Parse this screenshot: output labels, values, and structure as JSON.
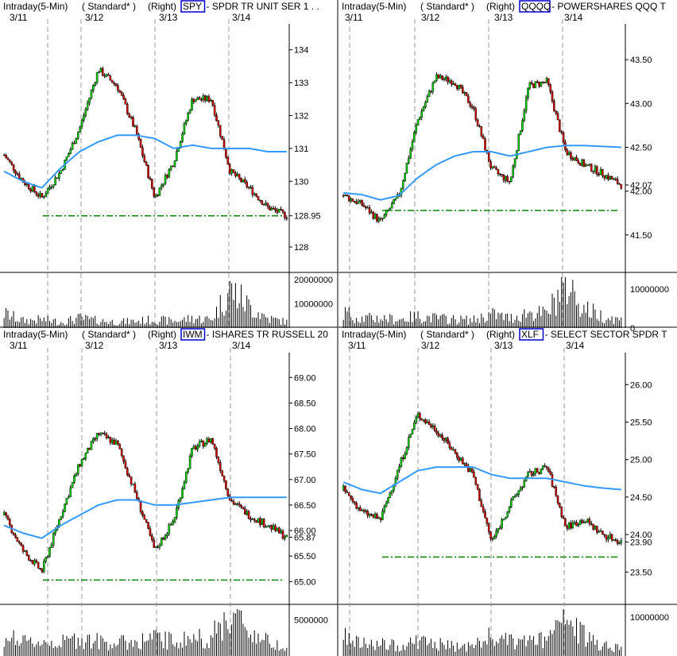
{
  "colors": {
    "up": "#00cc00",
    "down": "#cc0000",
    "ma": "#3399ff",
    "support": "#008800",
    "volume": "#000000",
    "grid": "#999999",
    "symbol_box": "#0000cc",
    "divider": "#000000"
  },
  "panels": [
    {
      "header": {
        "interval": "Intraday(5-Min)",
        "scale": "( Standard* )",
        "axis": "(Right)",
        "symbol": "SPY",
        "description": "- SPDR TR UNIT SER 1 . ."
      },
      "dates": [
        "3/11",
        "3/12",
        "3/13",
        "3/14"
      ],
      "price_axis": {
        "ticks": [
          "134",
          "133",
          "132",
          "131",
          "130",
          "128.95",
          "128"
        ],
        "tick_values": [
          134,
          133,
          132,
          131,
          130,
          128.95,
          128
        ],
        "range": [
          127.3,
          134.5
        ]
      },
      "volume_axis": {
        "ticks": [
          "20000000",
          "10000000"
        ],
        "tick_values": [
          20000000,
          10000000
        ],
        "max": 21000000
      },
      "support_level": 128.95
    },
    {
      "header": {
        "interval": "Intraday(5-Min)",
        "scale": "( Standard* )",
        "axis": "(Right)",
        "symbol": "QQQQ",
        "description": "- POWERSHARES QQQ T"
      },
      "dates": [
        "3/11",
        "3/12",
        "3/13",
        "3/14"
      ],
      "price_axis": {
        "ticks": [
          "43.50",
          "43.00",
          "42.50",
          "42.07",
          "42.00",
          "41.50"
        ],
        "tick_values": [
          43.5,
          43.0,
          42.5,
          42.07,
          42.0,
          41.5
        ],
        "range": [
          41.1,
          43.8
        ]
      },
      "volume_axis": {
        "ticks": [
          "10000000",
          "0"
        ],
        "tick_values": [
          10000000,
          0
        ],
        "max": 13000000
      },
      "support_level": 41.78
    },
    {
      "header": {
        "interval": "Intraday(5-Min)",
        "scale": "( Standard* )",
        "axis": "(Right)",
        "symbol": "IWM",
        "description": "- ISHARES TR RUSSELL 20"
      },
      "dates": [
        "3/11",
        "3/12",
        "3/13",
        "3/14"
      ],
      "price_axis": {
        "ticks": [
          "69.00",
          "68.50",
          "68.00",
          "67.50",
          "67.00",
          "66.50",
          "66.00",
          "65.87",
          "65.50",
          "65.00"
        ],
        "tick_values": [
          69.0,
          68.5,
          68.0,
          67.5,
          67.0,
          66.5,
          66.0,
          65.87,
          65.5,
          65.0
        ],
        "range": [
          64.6,
          69.3
        ]
      },
      "volume_axis": {
        "ticks": [
          "5000000"
        ],
        "tick_values": [
          5000000
        ],
        "max": 6500000
      },
      "support_level": 65.03
    },
    {
      "header": {
        "interval": "Intraday(5-Min)",
        "scale": "( Standard* )",
        "axis": "(Right)",
        "symbol": "XLF",
        "description": "- SELECT SECTOR SPDR T"
      },
      "dates": [
        "3/11",
        "3/12",
        "3/13",
        "3/14"
      ],
      "price_axis": {
        "ticks": [
          "26.00",
          "25.50",
          "25.00",
          "24.50",
          "24.00",
          "23.90",
          "23.50"
        ],
        "tick_values": [
          26.0,
          25.5,
          25.0,
          24.5,
          24.0,
          23.9,
          23.5
        ],
        "range": [
          23.1,
          26.3
        ]
      },
      "volume_axis": {
        "ticks": [
          "10000000"
        ],
        "tick_values": [
          10000000
        ],
        "max": 12000000
      },
      "support_level": 23.7
    }
  ],
  "chart_data": [
    {
      "type": "candlestick",
      "symbol": "SPY",
      "x": [
        "3/11",
        "3/11",
        "3/11",
        "3/11",
        "3/12",
        "3/12",
        "3/12",
        "3/12",
        "3/13",
        "3/13",
        "3/13",
        "3/13",
        "3/14",
        "3/14",
        "3/14",
        "3/14"
      ],
      "close": [
        130.8,
        130.0,
        129.5,
        130.3,
        131.6,
        133.4,
        132.9,
        131.5,
        129.5,
        130.6,
        132.5,
        132.5,
        130.3,
        129.8,
        129.2,
        128.95
      ],
      "series": [
        {
          "name": "",
          "values": [
            130.3,
            130.0,
            129.8,
            130.4,
            130.9,
            131.2,
            131.4,
            131.4,
            131.3,
            131.0,
            131.1,
            131.0,
            131.0,
            131.0,
            130.9,
            130.9
          ]
        }
      ],
      "volume": [
        6000000,
        3000000,
        3500000,
        2500000,
        4000000,
        3000000,
        2500000,
        2800000,
        3500000,
        2800000,
        4000000,
        3500000,
        16000000,
        9000000,
        4000000,
        2500000
      ],
      "ylim": [
        127.3,
        134.5
      ]
    },
    {
      "type": "candlestick",
      "symbol": "QQQQ",
      "x": [
        "3/11",
        "3/11",
        "3/11",
        "3/11",
        "3/12",
        "3/12",
        "3/12",
        "3/12",
        "3/13",
        "3/13",
        "3/13",
        "3/13",
        "3/14",
        "3/14",
        "3/14",
        "3/14"
      ],
      "close": [
        41.95,
        41.85,
        41.65,
        41.95,
        42.8,
        43.3,
        43.25,
        42.95,
        42.25,
        42.1,
        43.2,
        43.25,
        42.45,
        42.3,
        42.2,
        42.07
      ],
      "series": [
        {
          "name": "",
          "values": [
            41.98,
            41.96,
            41.9,
            41.95,
            42.15,
            42.3,
            42.4,
            42.45,
            42.45,
            42.4,
            42.45,
            42.5,
            42.52,
            42.52,
            42.51,
            42.5
          ]
        }
      ],
      "volume": [
        4000000,
        2500000,
        2500000,
        2200000,
        3000000,
        2500000,
        2200000,
        2000000,
        3500000,
        2500000,
        4000000,
        3500000,
        12000000,
        5000000,
        3000000,
        2000000
      ],
      "ylim": [
        41.1,
        43.8
      ]
    },
    {
      "type": "candlestick",
      "symbol": "IWM",
      "x": [
        "3/11",
        "3/11",
        "3/11",
        "3/11",
        "3/12",
        "3/12",
        "3/12",
        "3/12",
        "3/13",
        "3/13",
        "3/13",
        "3/13",
        "3/14",
        "3/14",
        "3/14",
        "3/14"
      ],
      "close": [
        66.3,
        65.6,
        65.2,
        66.3,
        67.3,
        67.9,
        67.7,
        66.7,
        65.6,
        66.2,
        67.6,
        67.8,
        66.6,
        66.3,
        66.1,
        65.87
      ],
      "series": [
        {
          "name": "",
          "values": [
            66.1,
            65.95,
            65.85,
            66.1,
            66.3,
            66.5,
            66.6,
            66.6,
            66.5,
            66.5,
            66.55,
            66.6,
            66.65,
            66.65,
            66.65,
            66.65
          ]
        }
      ],
      "volume": [
        3000000,
        1800000,
        2000000,
        1800000,
        2500000,
        2000000,
        1800000,
        2000000,
        2500000,
        2000000,
        2500000,
        2500000,
        6000000,
        3500000,
        2000000,
        1500000
      ],
      "ylim": [
        64.6,
        69.3
      ]
    },
    {
      "type": "candlestick",
      "symbol": "XLF",
      "x": [
        "3/11",
        "3/11",
        "3/11",
        "3/11",
        "3/12",
        "3/12",
        "3/12",
        "3/12",
        "3/13",
        "3/13",
        "3/13",
        "3/13",
        "3/14",
        "3/14",
        "3/14",
        "3/14"
      ],
      "close": [
        24.6,
        24.3,
        24.2,
        24.9,
        25.6,
        25.4,
        25.1,
        24.8,
        23.9,
        24.4,
        24.8,
        24.9,
        24.1,
        24.2,
        24.0,
        23.9
      ],
      "series": [
        {
          "name": "",
          "values": [
            24.7,
            24.6,
            24.55,
            24.7,
            24.85,
            24.9,
            24.9,
            24.9,
            24.8,
            24.75,
            24.75,
            24.75,
            24.7,
            24.65,
            24.62,
            24.6
          ]
        }
      ],
      "volume": [
        5000000,
        3000000,
        3000000,
        2500000,
        4000000,
        3000000,
        2500000,
        2500000,
        5000000,
        3500000,
        4000000,
        4000000,
        9000000,
        5000000,
        3000000,
        2000000
      ],
      "ylim": [
        23.1,
        26.3
      ]
    }
  ]
}
